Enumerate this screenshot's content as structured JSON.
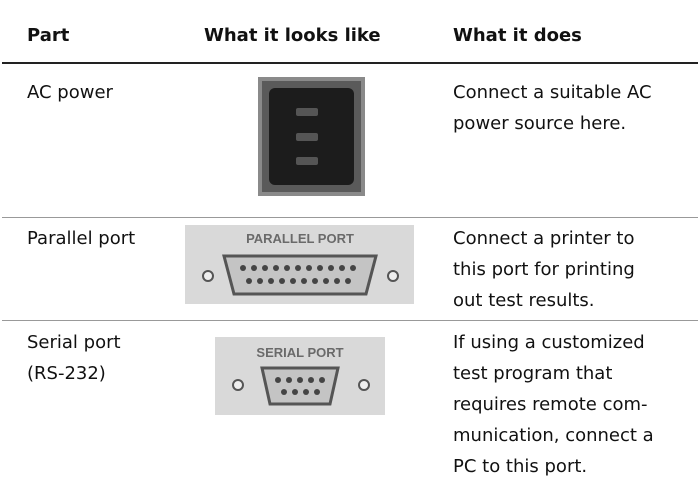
{
  "table": {
    "header": [
      "Part",
      "What it looks like",
      "What it does"
    ],
    "rows": [
      {
        "part": [
          "AC power"
        ],
        "image_label": null,
        "description": [
          "Connect a suitable AC",
          "power source here."
        ]
      },
      {
        "part": [
          "Parallel port"
        ],
        "image_label": "PARALLEL PORT",
        "description": [
          "Connect a printer to",
          "this port for printing",
          "out test results."
        ]
      },
      {
        "part": [
          "Serial port",
          "(RS-232)"
        ],
        "image_label": "SERIAL PORT",
        "description": [
          "If using a customized",
          "test program that",
          "requires remote com-",
          "munication, connect a",
          "PC to this port."
        ]
      }
    ]
  }
}
